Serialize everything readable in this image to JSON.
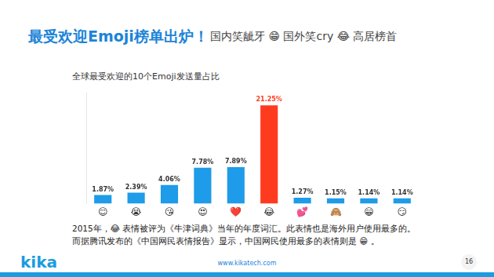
{
  "header": {
    "title": "最受欢迎Emoji榜单出炉！",
    "tagline": "国内笑龇牙 😁 国外笑cry 😂 高居榜首"
  },
  "chart_data": {
    "type": "bar",
    "title": "全球最受欢迎的10个Emoji发送量占比",
    "categories": [
      "😊",
      "😭",
      "😘",
      "😍",
      "❤️",
      "😂",
      "💕",
      "🙈",
      "😁",
      "😏"
    ],
    "values": [
      1.87,
      2.39,
      4.06,
      7.78,
      7.89,
      21.25,
      1.27,
      1.15,
      1.14,
      1.14
    ],
    "value_labels": [
      "1.87%",
      "2.39%",
      "4.06%",
      "7.78%",
      "7.89%",
      "21.25%",
      "1.27%",
      "1.15%",
      "1.14%",
      "1.14%"
    ],
    "colors": [
      "#1e9be9",
      "#1e9be9",
      "#1e9be9",
      "#1e9be9",
      "#1e9be9",
      "#ff3b1f",
      "#1e9be9",
      "#1e9be9",
      "#1e9be9",
      "#1e9be9"
    ],
    "ylim": [
      0,
      24
    ],
    "grid": false,
    "data_labels": true,
    "tick_labels": "x"
  },
  "note": [
    "2015年，😂 表情被评为《牛津词典》当年的年度词汇。此表情也是海外用户使用最多的。",
    "而据腾讯发布的《中国网民表情报告》显示，中国网民使用最多的表情则是 😁 。"
  ],
  "footer": {
    "logo": "kika",
    "url": "www.kikatech.com",
    "page": "16"
  }
}
